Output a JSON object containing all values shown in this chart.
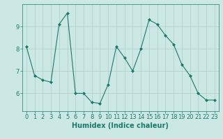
{
  "x": [
    0,
    1,
    2,
    3,
    4,
    5,
    6,
    7,
    8,
    9,
    10,
    11,
    12,
    13,
    14,
    15,
    16,
    17,
    18,
    19,
    20,
    21,
    22,
    23
  ],
  "y": [
    8.1,
    6.8,
    6.6,
    6.5,
    9.1,
    9.6,
    6.0,
    6.0,
    5.6,
    5.55,
    6.4,
    8.1,
    7.6,
    7.0,
    8.0,
    9.3,
    9.1,
    8.6,
    8.2,
    7.3,
    6.8,
    6.0,
    5.7,
    5.7
  ],
  "line_color": "#1a7a6a",
  "marker": "D",
  "marker_size": 2,
  "bg_color": "#cce8e4",
  "grid_color": "#b0ccc8",
  "axis_label_color": "#1a7a6a",
  "tick_color": "#1a7a6a",
  "xlabel": "Humidex (Indice chaleur)",
  "ylim": [
    5.2,
    10.0
  ],
  "yticks": [
    6,
    7,
    8,
    9
  ],
  "xlim": [
    -0.5,
    23.5
  ],
  "xticks": [
    0,
    1,
    2,
    3,
    4,
    5,
    6,
    7,
    8,
    9,
    10,
    11,
    12,
    13,
    14,
    15,
    16,
    17,
    18,
    19,
    20,
    21,
    22,
    23
  ],
  "xlabel_fontsize": 7,
  "tick_fontsize": 6
}
